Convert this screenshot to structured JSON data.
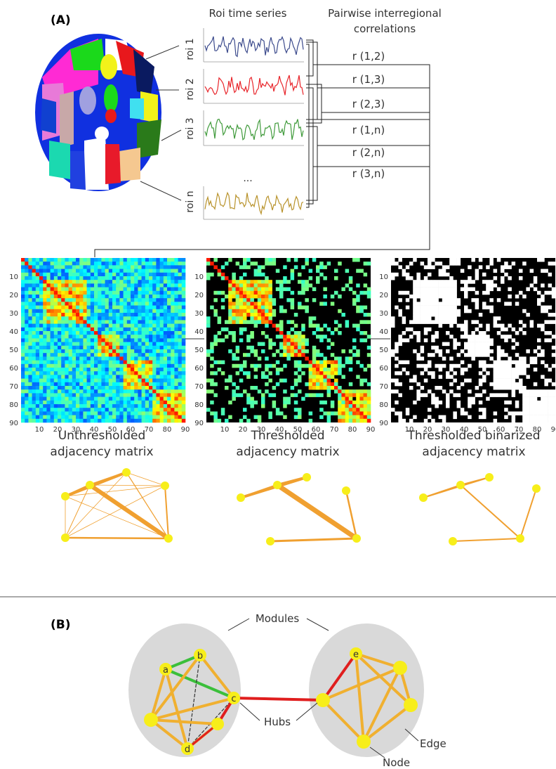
{
  "panel_a": {
    "label": "(A)",
    "roi_header": "Roi time series",
    "corr_header_line1": "Pairwise interregional",
    "corr_header_line2": "correlations",
    "rois": [
      {
        "label": "roi 1",
        "color": "#3b4a8c"
      },
      {
        "label": "roi 2",
        "color": "#e8242a"
      },
      {
        "label": "roi 3",
        "color": "#3f9a3a"
      },
      {
        "label": "roi n",
        "color": "#b8922a"
      }
    ],
    "ellipsis": "...",
    "correlations": [
      "r (1,2)",
      "r (1,3)",
      "r (2,3)",
      "r (1,n)",
      "r (2,n)",
      "r (3,n)"
    ],
    "matrix_ticks": [
      "10",
      "20",
      "30",
      "40",
      "50",
      "60",
      "70",
      "80",
      "90"
    ],
    "matrices": [
      {
        "title_line1": "Unthresholded",
        "title_line2": "adjacency matrix"
      },
      {
        "title_line1": "Thresholded",
        "title_line2": "adjacency matrix"
      },
      {
        "title_line1": "Thresholded binarized",
        "title_line2": "adjacency matrix"
      }
    ]
  },
  "panel_b": {
    "label": "(B)",
    "modules_label": "Modules",
    "hubs_label": "Hubs",
    "edge_label": "Edge",
    "node_label": "Node",
    "node_names": [
      "a",
      "b",
      "c",
      "d",
      "e"
    ]
  },
  "colors": {
    "node_fill": "#f7ee1a",
    "edge_orange": "#f0a030",
    "edge_green": "#3bbf3b",
    "edge_red": "#e01e1e",
    "module_bg": "#d9d9d9"
  }
}
